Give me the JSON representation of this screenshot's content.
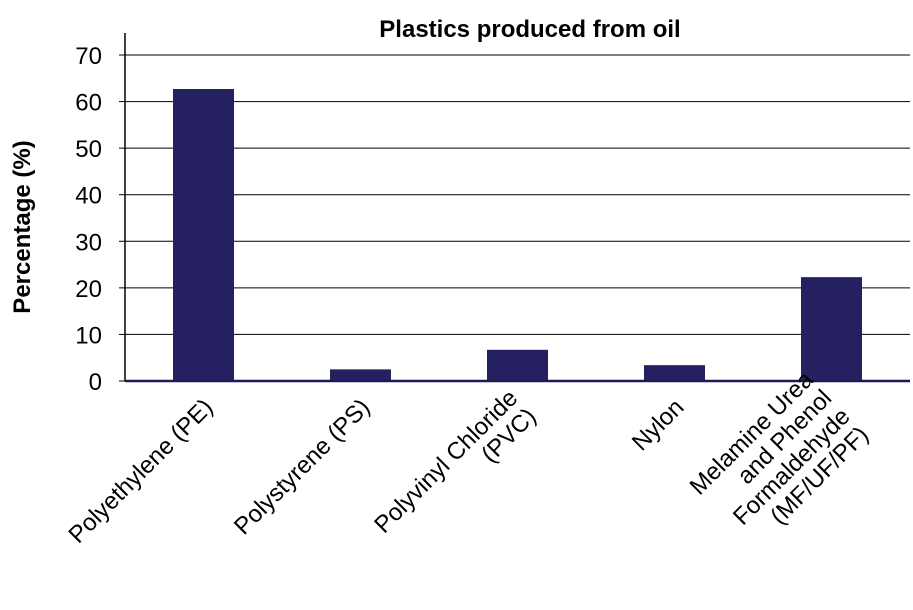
{
  "chart_data": {
    "type": "bar",
    "title": "Plastics produced from oil",
    "xlabel": "",
    "ylabel": "Percentage (%)",
    "ylim": [
      0,
      70
    ],
    "yticks": [
      0,
      10,
      20,
      30,
      40,
      50,
      60,
      70
    ],
    "grid": true,
    "legend": "none",
    "bar_color": "#252060",
    "categories": [
      "Polyethylene (PE)",
      "Polystyrene (PS)",
      "Polyvinyl Chloride (PVC)",
      "Nylon",
      "Melamine Urea and Phenol Formaldehyde (MF/UF/PF)"
    ],
    "category_lines": [
      [
        "Polyethylene (PE)"
      ],
      [
        "Polystyrene (PS)"
      ],
      [
        "Polyvinyl Chloride",
        "(PVC)"
      ],
      [
        "Nylon"
      ],
      [
        "Melamine Urea",
        "and Phenol",
        "Formaldehyde",
        "(MF/UF/PF)"
      ]
    ],
    "values": [
      62.7,
      2.5,
      6.7,
      3.4,
      22.3
    ]
  }
}
